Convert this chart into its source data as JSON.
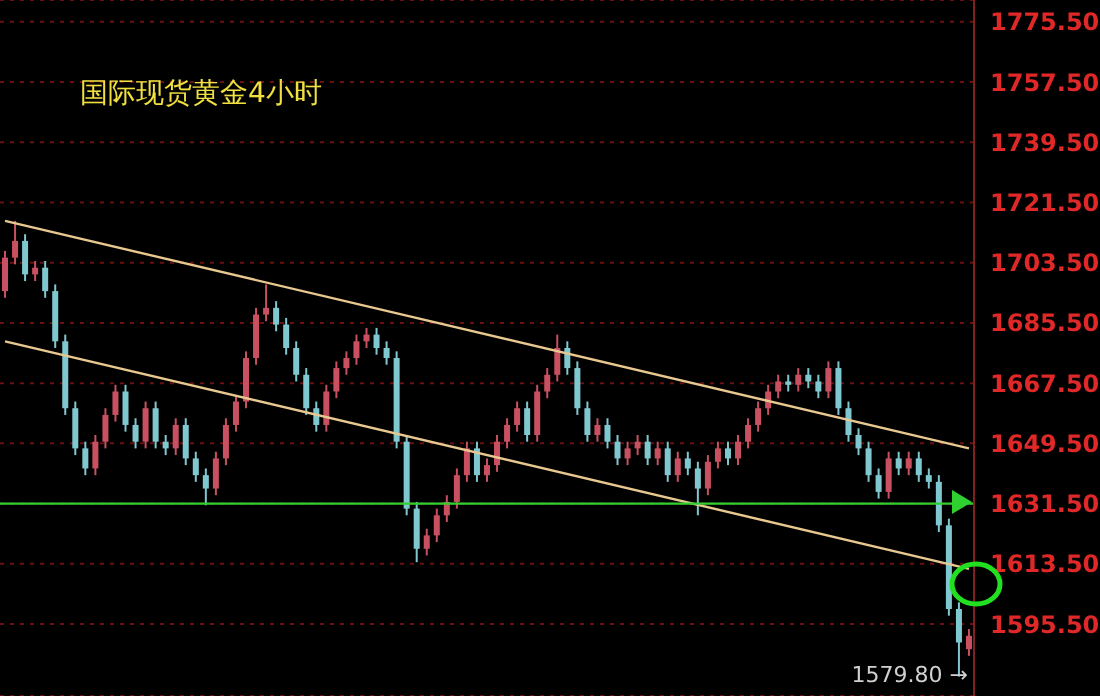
{
  "chart_data": {
    "type": "candlestick",
    "title": "国际现货黄金4小时",
    "categories": [
      null,
      null,
      null,
      null,
      null,
      null,
      null,
      null,
      null,
      null,
      null,
      null,
      null,
      null,
      null,
      null,
      null,
      null,
      null,
      null,
      null,
      null,
      null,
      null,
      null,
      null,
      null,
      null,
      null,
      null,
      null,
      null,
      null,
      null,
      null,
      null,
      null,
      null,
      null,
      null,
      null,
      null,
      null,
      null,
      null,
      null,
      null,
      null,
      null,
      null,
      null,
      null,
      null,
      null,
      null,
      null,
      null,
      null,
      null,
      null,
      null,
      null,
      null,
      null,
      null,
      null,
      null,
      null,
      null,
      null,
      null,
      null,
      null,
      null,
      null,
      null,
      null,
      null,
      null,
      null,
      null,
      null,
      null,
      null,
      null,
      null,
      null,
      null,
      null,
      null,
      null,
      null,
      null,
      null,
      null,
      null,
      null
    ],
    "ohlc": [
      [
        1695,
        1707,
        1693,
        1705
      ],
      [
        1705,
        1716,
        1703,
        1710
      ],
      [
        1710,
        1712,
        1698,
        1700
      ],
      [
        1700,
        1704,
        1698,
        1702
      ],
      [
        1702,
        1704,
        1693,
        1695
      ],
      [
        1695,
        1697,
        1678,
        1680
      ],
      [
        1680,
        1682,
        1658,
        1660
      ],
      [
        1660,
        1662,
        1646,
        1648
      ],
      [
        1648,
        1650,
        1640,
        1642
      ],
      [
        1642,
        1652,
        1640,
        1650
      ],
      [
        1650,
        1660,
        1648,
        1658
      ],
      [
        1658,
        1667,
        1656,
        1665
      ],
      [
        1665,
        1667,
        1653,
        1655
      ],
      [
        1655,
        1657,
        1648,
        1650
      ],
      [
        1650,
        1662,
        1648,
        1660
      ],
      [
        1660,
        1662,
        1648,
        1650
      ],
      [
        1650,
        1652,
        1646,
        1648
      ],
      [
        1648,
        1657,
        1646,
        1655
      ],
      [
        1655,
        1657,
        1643,
        1645
      ],
      [
        1645,
        1647,
        1638,
        1640
      ],
      [
        1640,
        1642,
        1631,
        1636
      ],
      [
        1636,
        1647,
        1634,
        1645
      ],
      [
        1645,
        1657,
        1643,
        1655
      ],
      [
        1655,
        1664,
        1653,
        1662
      ],
      [
        1662,
        1677,
        1660,
        1675
      ],
      [
        1675,
        1690,
        1673,
        1688
      ],
      [
        1688,
        1697,
        1686,
        1690
      ],
      [
        1690,
        1692,
        1683,
        1685
      ],
      [
        1685,
        1687,
        1676,
        1678
      ],
      [
        1678,
        1680,
        1668,
        1670
      ],
      [
        1670,
        1672,
        1658,
        1660
      ],
      [
        1660,
        1662,
        1653,
        1655
      ],
      [
        1655,
        1667,
        1653,
        1665
      ],
      [
        1665,
        1674,
        1663,
        1672
      ],
      [
        1672,
        1677,
        1670,
        1675
      ],
      [
        1675,
        1682,
        1673,
        1680
      ],
      [
        1680,
        1684,
        1678,
        1682
      ],
      [
        1682,
        1684,
        1676,
        1678
      ],
      [
        1678,
        1680,
        1673,
        1675
      ],
      [
        1675,
        1677,
        1648,
        1650
      ],
      [
        1650,
        1652,
        1628,
        1630
      ],
      [
        1630,
        1632,
        1614,
        1618
      ],
      [
        1618,
        1624,
        1616,
        1622
      ],
      [
        1622,
        1630,
        1620,
        1628
      ],
      [
        1628,
        1634,
        1626,
        1632
      ],
      [
        1632,
        1642,
        1630,
        1640
      ],
      [
        1640,
        1650,
        1638,
        1648
      ],
      [
        1648,
        1650,
        1638,
        1640
      ],
      [
        1640,
        1645,
        1638,
        1643
      ],
      [
        1643,
        1652,
        1641,
        1650
      ],
      [
        1650,
        1657,
        1648,
        1655
      ],
      [
        1655,
        1662,
        1653,
        1660
      ],
      [
        1660,
        1662,
        1650,
        1652
      ],
      [
        1652,
        1667,
        1650,
        1665
      ],
      [
        1665,
        1672,
        1663,
        1670
      ],
      [
        1670,
        1682,
        1668,
        1678
      ],
      [
        1678,
        1680,
        1670,
        1672
      ],
      [
        1672,
        1674,
        1658,
        1660
      ],
      [
        1660,
        1662,
        1650,
        1652
      ],
      [
        1652,
        1657,
        1650,
        1655
      ],
      [
        1655,
        1657,
        1648,
        1650
      ],
      [
        1650,
        1652,
        1643,
        1645
      ],
      [
        1645,
        1650,
        1643,
        1648
      ],
      [
        1648,
        1652,
        1646,
        1650
      ],
      [
        1650,
        1652,
        1643,
        1645
      ],
      [
        1645,
        1650,
        1643,
        1648
      ],
      [
        1648,
        1650,
        1638,
        1640
      ],
      [
        1640,
        1647,
        1638,
        1645
      ],
      [
        1645,
        1647,
        1640,
        1642
      ],
      [
        1642,
        1644,
        1628,
        1636
      ],
      [
        1636,
        1646,
        1634,
        1644
      ],
      [
        1644,
        1650,
        1642,
        1648
      ],
      [
        1648,
        1650,
        1643,
        1645
      ],
      [
        1645,
        1652,
        1643,
        1650
      ],
      [
        1650,
        1657,
        1648,
        1655
      ],
      [
        1655,
        1662,
        1653,
        1660
      ],
      [
        1660,
        1667,
        1658,
        1665
      ],
      [
        1665,
        1670,
        1663,
        1668
      ],
      [
        1668,
        1670,
        1665,
        1667
      ],
      [
        1667,
        1672,
        1665,
        1670
      ],
      [
        1670,
        1672,
        1666,
        1668
      ],
      [
        1668,
        1670,
        1663,
        1665
      ],
      [
        1665,
        1674,
        1663,
        1672
      ],
      [
        1672,
        1674,
        1658,
        1660
      ],
      [
        1660,
        1662,
        1650,
        1652
      ],
      [
        1652,
        1654,
        1646,
        1648
      ],
      [
        1648,
        1650,
        1638,
        1640
      ],
      [
        1640,
        1642,
        1633,
        1635
      ],
      [
        1635,
        1647,
        1633,
        1645
      ],
      [
        1645,
        1647,
        1640,
        1642
      ],
      [
        1642,
        1647,
        1640,
        1645
      ],
      [
        1645,
        1647,
        1638,
        1640
      ],
      [
        1640,
        1642,
        1636,
        1638
      ],
      [
        1638,
        1640,
        1623,
        1625
      ],
      [
        1625,
        1627,
        1598,
        1600
      ],
      [
        1600,
        1602,
        1579.8,
        1590
      ],
      [
        1588,
        1594,
        1586,
        1592
      ]
    ],
    "colors": [
      "#c85060",
      "#c85060",
      "#80c8d0",
      "#c85060",
      "#80c8d0",
      "#80c8d0",
      "#80c8d0",
      "#80c8d0",
      "#80c8d0",
      "#c85060",
      "#c85060",
      "#c85060",
      "#80c8d0",
      "#80c8d0",
      "#c85060",
      "#80c8d0",
      "#80c8d0",
      "#c85060",
      "#80c8d0",
      "#80c8d0",
      "#80c8d0",
      "#c85060",
      "#c85060",
      "#c85060",
      "#c85060",
      "#c85060",
      "#c85060",
      "#80c8d0",
      "#80c8d0",
      "#80c8d0",
      "#80c8d0",
      "#80c8d0",
      "#c85060",
      "#c85060",
      "#c85060",
      "#c85060",
      "#c85060",
      "#80c8d0",
      "#80c8d0",
      "#80c8d0",
      "#80c8d0",
      "#80c8d0",
      "#c85060",
      "#c85060",
      "#c85060",
      "#c85060",
      "#c85060",
      "#80c8d0",
      "#c85060",
      "#c85060",
      "#c85060",
      "#c85060",
      "#80c8d0",
      "#c85060",
      "#c85060",
      "#c85060",
      "#80c8d0",
      "#80c8d0",
      "#80c8d0",
      "#c85060",
      "#80c8d0",
      "#80c8d0",
      "#c85060",
      "#c85060",
      "#80c8d0",
      "#c85060",
      "#80c8d0",
      "#c85060",
      "#80c8d0",
      "#80c8d0",
      "#c85060",
      "#c85060",
      "#80c8d0",
      "#c85060",
      "#c85060",
      "#c85060",
      "#c85060",
      "#c85060",
      "#80c8d0",
      "#c85060",
      "#80c8d0",
      "#80c8d0",
      "#c85060",
      "#80c8d0",
      "#80c8d0",
      "#80c8d0",
      "#80c8d0",
      "#80c8d0",
      "#c85060",
      "#80c8d0",
      "#c85060",
      "#80c8d0",
      "#80c8d0",
      "#80c8d0",
      "#80c8d0",
      "#80c8d0",
      "#c85060"
    ],
    "series": [
      {
        "type": "line",
        "color": "#e8c890",
        "values": [
          1716,
          null,
          null,
          null,
          null,
          null,
          null,
          null,
          null,
          null,
          null,
          null,
          null,
          null,
          null,
          null,
          null,
          null,
          null,
          null,
          null,
          null,
          null,
          null,
          null,
          null,
          null,
          null,
          null,
          null,
          null,
          null,
          null,
          null,
          null,
          null,
          null,
          null,
          null,
          null,
          null,
          null,
          null,
          null,
          null,
          null,
          null,
          null,
          null,
          null,
          null,
          null,
          null,
          null,
          null,
          null,
          null,
          null,
          null,
          null,
          null,
          null,
          null,
          null,
          null,
          null,
          null,
          null,
          null,
          null,
          null,
          null,
          null,
          null,
          null,
          null,
          null,
          null,
          null,
          null,
          null,
          null,
          null,
          null,
          null,
          null,
          null,
          null,
          null,
          null,
          null,
          null,
          null,
          null,
          null,
          null,
          1648
        ]
      },
      {
        "type": "line",
        "color": "#e8c890",
        "values": [
          1680,
          null,
          null,
          null,
          null,
          null,
          null,
          null,
          null,
          null,
          null,
          null,
          null,
          null,
          null,
          null,
          null,
          null,
          null,
          null,
          null,
          null,
          null,
          null,
          null,
          null,
          null,
          null,
          null,
          null,
          null,
          null,
          null,
          null,
          null,
          null,
          null,
          null,
          null,
          null,
          null,
          null,
          null,
          null,
          null,
          null,
          null,
          null,
          null,
          null,
          null,
          null,
          null,
          null,
          null,
          null,
          null,
          null,
          null,
          null,
          null,
          null,
          null,
          null,
          null,
          null,
          null,
          null,
          null,
          null,
          null,
          null,
          null,
          null,
          null,
          null,
          null,
          null,
          null,
          null,
          null,
          null,
          null,
          null,
          null,
          null,
          null,
          null,
          null,
          null,
          null,
          null,
          null,
          null,
          null,
          null,
          1612
        ]
      }
    ],
    "ref_lines": [
      {
        "axis": "y",
        "value": 1631.5,
        "color": "#30d030"
      }
    ],
    "annotations": [
      "1579.80 →"
    ],
    "ylim": [
      1574,
      1782
    ],
    "yticks": [
      {
        "value": 1595.5,
        "label": "1595.50"
      },
      {
        "value": 1613.5,
        "label": "1613.50"
      },
      {
        "value": 1631.5,
        "label": "1631.50"
      },
      {
        "value": 1649.5,
        "label": "1649.50"
      },
      {
        "value": 1667.5,
        "label": "1667.50"
      },
      {
        "value": 1685.5,
        "label": "1685.50"
      },
      {
        "value": 1703.5,
        "label": "1703.50"
      },
      {
        "value": 1721.5,
        "label": "1721.50"
      },
      {
        "value": 1739.5,
        "label": "1739.50"
      },
      {
        "value": 1757.5,
        "label": "1757.50"
      },
      {
        "value": 1775.5,
        "label": "1775.50"
      }
    ],
    "grid": "y",
    "tick_labels": "y"
  }
}
